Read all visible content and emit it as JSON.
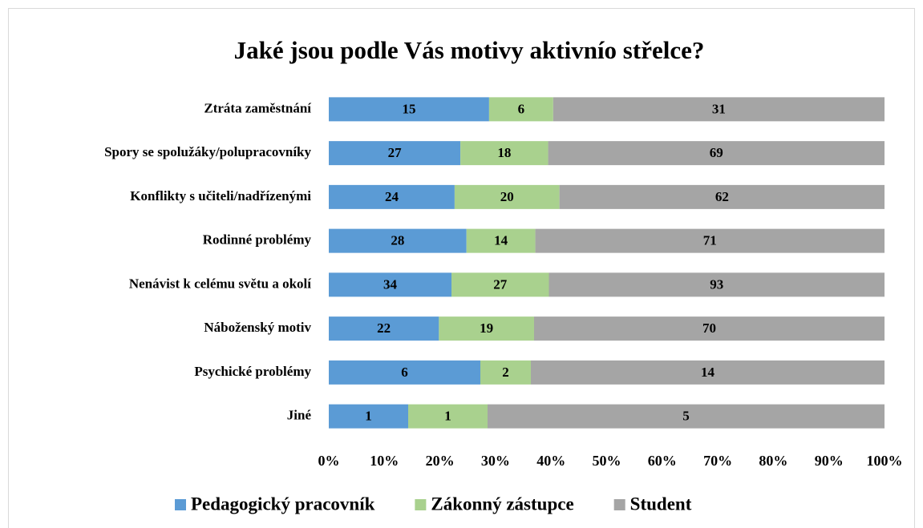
{
  "chart_data": {
    "type": "bar",
    "orientation": "horizontal",
    "stacking": "percent",
    "title": "Jaké jsou podle Vás motivy aktivnío střelce?",
    "categories": [
      "Ztráta zaměstnání",
      "Spory se spolužáky/polupracovníky",
      "Konflikty s učiteli/nadřízenými",
      "Rodinné problémy",
      "Nenávist k celému světu a okolí",
      "Náboženský motiv",
      "Psychické problémy",
      "Jiné"
    ],
    "series": [
      {
        "name": "Pedagogický pracovník",
        "color": "#5b9bd5",
        "values": [
          15,
          27,
          24,
          28,
          34,
          22,
          6,
          1
        ]
      },
      {
        "name": "Zákonný zástupce",
        "color": "#a9d18e",
        "values": [
          6,
          18,
          20,
          14,
          27,
          19,
          2,
          1
        ]
      },
      {
        "name": "Student",
        "color": "#a5a5a5",
        "values": [
          31,
          69,
          62,
          71,
          93,
          70,
          14,
          5
        ]
      }
    ],
    "xlim": [
      0,
      100
    ],
    "xticks": [
      {
        "value": 0,
        "label": "0%"
      },
      {
        "value": 10,
        "label": "10%"
      },
      {
        "value": 20,
        "label": "20%"
      },
      {
        "value": 30,
        "label": "30%"
      },
      {
        "value": 40,
        "label": "40%"
      },
      {
        "value": 50,
        "label": "50%"
      },
      {
        "value": 60,
        "label": "60%"
      },
      {
        "value": 70,
        "label": "70%"
      },
      {
        "value": 80,
        "label": "80%"
      },
      {
        "value": 90,
        "label": "90%"
      },
      {
        "value": 100,
        "label": "100%"
      }
    ],
    "legend": "bottom"
  }
}
